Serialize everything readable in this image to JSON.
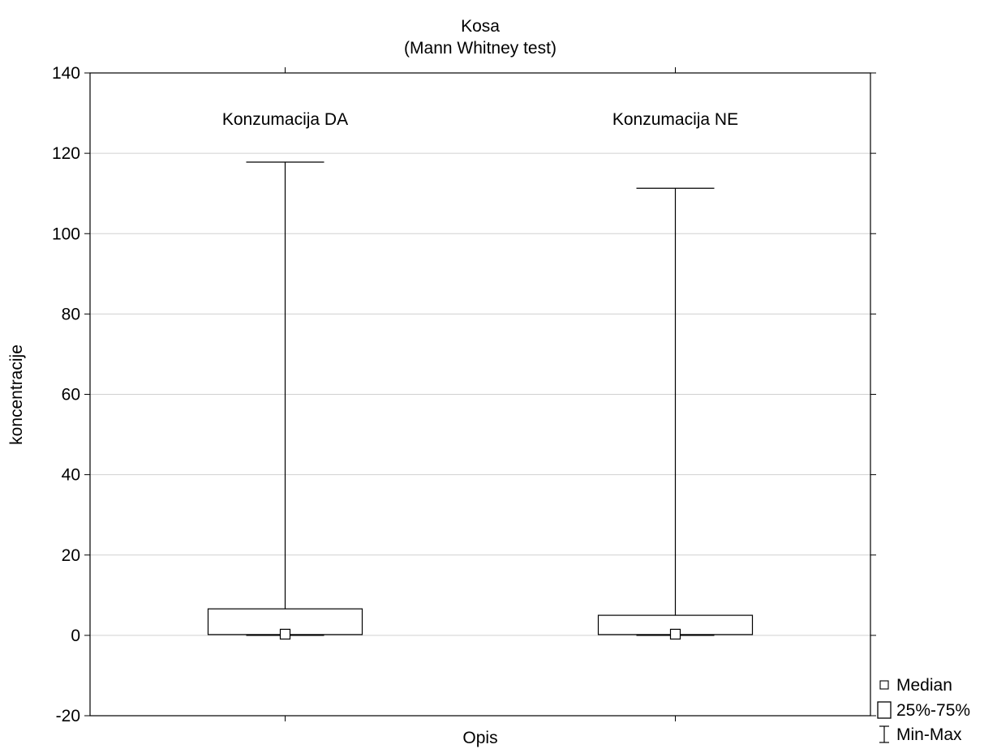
{
  "chart_data": {
    "type": "boxplot",
    "title": "Kosa",
    "subtitle": "(Mann Whitney test)",
    "xlabel": "Opis",
    "ylabel": "koncentracije",
    "ylim": [
      -20,
      140
    ],
    "yticks": [
      -20,
      0,
      20,
      40,
      60,
      80,
      100,
      120,
      140
    ],
    "grid": true,
    "categories": [
      "Konzumacija DA",
      "Konzumacija NE"
    ],
    "boxes": [
      {
        "category": "Konzumacija DA",
        "min": 0,
        "q1": 0.2,
        "median": 0.3,
        "q3": 6.6,
        "max": 117.8
      },
      {
        "category": "Konzumacija NE",
        "min": 0,
        "q1": 0.2,
        "median": 0.3,
        "q3": 5.0,
        "max": 111.3
      }
    ],
    "legend": {
      "placement": "bottom-right",
      "items": [
        {
          "symbol": "median",
          "label": "Median"
        },
        {
          "symbol": "box",
          "label": "25%-75%"
        },
        {
          "symbol": "whisker",
          "label": "Min-Max"
        }
      ]
    },
    "colors": {
      "grid": "#d0d0d0",
      "stroke": "#000000",
      "fill": "#ffffff"
    }
  }
}
